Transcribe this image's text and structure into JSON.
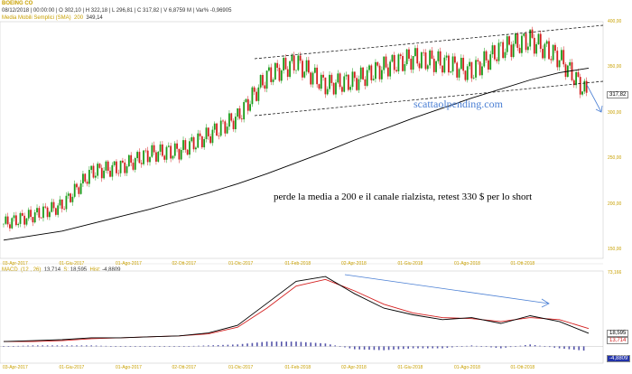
{
  "header": {
    "symbol": "BOEING CO",
    "bar_info": "08/12/2018 | 00:00:00 | O 302,10 | H 322,18 | L 296,81 | C 317,82 | V 6,8759 M | Var% -0,96905",
    "ma_label": "Media Mobili Semplici (SMA)",
    "ma_period": "200",
    "ma_value": "349,14"
  },
  "macd_header": {
    "label": "MACD",
    "params": "(12 , 26)",
    "macd_value": "13,714",
    "signal_label": "S:",
    "signal_value": "18,595",
    "hist_label": "Hist:",
    "hist_value": "-4,8809"
  },
  "price_axis": [
    "400,00",
    "350,00",
    "300,00",
    "250,00",
    "200,00",
    "150,00"
  ],
  "price_tag": "317,82",
  "macd_axis": [
    "73,166"
  ],
  "macd_tags": [
    "18,595",
    "13,714",
    "-4,8809"
  ],
  "date_axis": [
    "03-Apr-2017",
    "01-Giu-2017",
    "01-Ago-2017",
    "02-Ott-2017",
    "01-Dic-2017",
    "01-Feb-2018",
    "02-Apr-2018",
    "01-Giu-2018",
    "01-Ago-2018",
    "01-Ott-2018"
  ],
  "annotations": {
    "watermark": "scattaolpending.com",
    "comment": "perde la media a 200 e il canale rialzista, retest 330 $ per lo short"
  },
  "colors": {
    "up_candle": "#1a9c1a",
    "down_candle": "#d42020",
    "sma": "#000000",
    "macd_line": "#000000",
    "signal_line": "#d42020",
    "histogram": "#5555aa",
    "arrow": "#4a7fd4",
    "axis_labels": "#c8a000"
  },
  "chart_data": [
    {
      "type": "candlestick",
      "title": "BOEING CO",
      "x": [
        "2017-04",
        "2017-05",
        "2017-06",
        "2017-07",
        "2017-08",
        "2017-09",
        "2017-10",
        "2017-11",
        "2017-12",
        "2018-01",
        "2018-02",
        "2018-03",
        "2018-04",
        "2018-05",
        "2018-06",
        "2018-07",
        "2018-08",
        "2018-09",
        "2018-10",
        "2018-11",
        "2018-12"
      ],
      "series": [
        {
          "name": "Close",
          "values": [
            178,
            187,
            198,
            235,
            240,
            255,
            258,
            275,
            295,
            340,
            355,
            330,
            335,
            350,
            360,
            355,
            345,
            370,
            380,
            360,
            318
          ]
        },
        {
          "name": "SMA 200",
          "values": [
            160,
            165,
            170,
            178,
            186,
            194,
            203,
            212,
            222,
            233,
            245,
            257,
            270,
            282,
            294,
            305,
            316,
            326,
            336,
            344,
            349
          ]
        }
      ],
      "ylim": [
        140,
        400
      ]
    },
    {
      "type": "line",
      "title": "MACD",
      "x": [
        "2017-04",
        "2017-05",
        "2017-06",
        "2017-07",
        "2017-08",
        "2017-09",
        "2017-10",
        "2017-11",
        "2017-12",
        "2018-01",
        "2018-02",
        "2018-03",
        "2018-04",
        "2018-05",
        "2018-06",
        "2018-07",
        "2018-08",
        "2018-09",
        "2018-10",
        "2018-11",
        "2018-12"
      ],
      "series": [
        {
          "name": "MACD",
          "values": [
            5,
            6,
            7,
            9,
            9,
            10,
            11,
            14,
            22,
            45,
            68,
            73,
            55,
            40,
            33,
            28,
            30,
            24,
            32,
            26,
            13.7
          ]
        },
        {
          "name": "Signal",
          "values": [
            5,
            5,
            6,
            8,
            9,
            10,
            11,
            13,
            20,
            40,
            63,
            70,
            58,
            44,
            35,
            30,
            29,
            26,
            30,
            28,
            18.6
          ]
        }
      ],
      "ylim": [
        -10,
        75
      ]
    }
  ]
}
